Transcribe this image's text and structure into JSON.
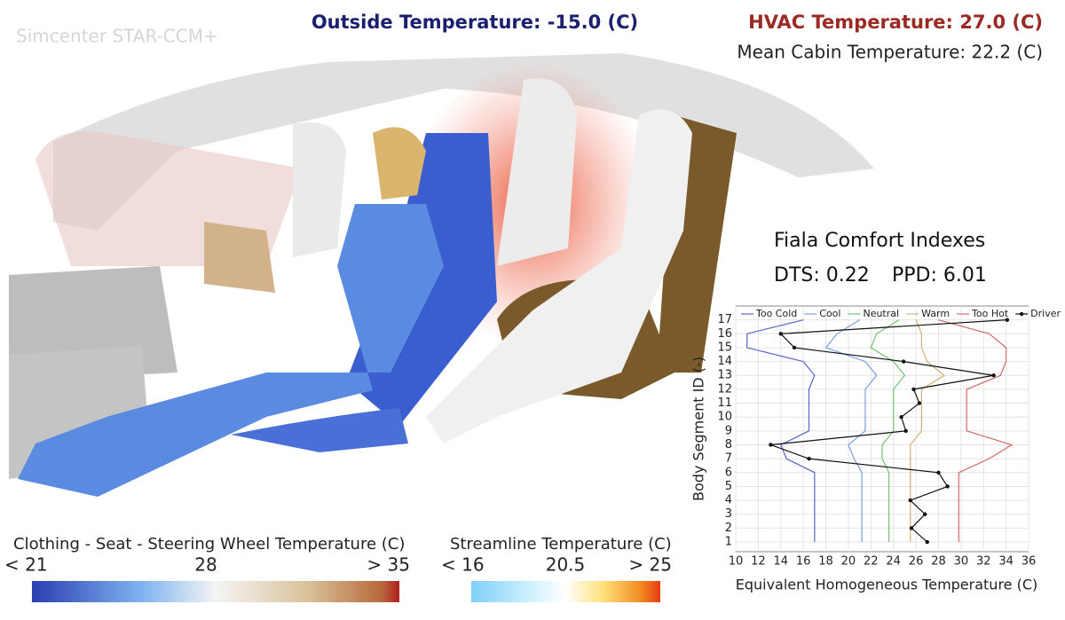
{
  "brand": "Simcenter STAR-CCM+",
  "outside_temperature": "Outside Temperature: -15.0 (C)",
  "hvac_temperature": "HVAC Temperature: 27.0 (C)",
  "mean_cabin_temperature": "Mean Cabin Temperature: 22.2 (C)",
  "comfort": {
    "title": "Fiala Comfort Indexes",
    "dts": "DTS: 0.22",
    "ppd": "PPD: 6.01"
  },
  "colorbar_surface": {
    "title": "Clothing - Seat - Steering Wheel Temperature (C)",
    "labels": [
      "< 21",
      "28",
      "> 35"
    ]
  },
  "colorbar_streamline": {
    "title": "Streamline Temperature (C)",
    "labels": [
      "< 16",
      "20.5",
      "> 25"
    ]
  },
  "chart_data": {
    "type": "line",
    "orientation": "horizontal",
    "xlabel": "Equivalent Homogeneous Temperature (C)",
    "ylabel": "Body Segment ID (-)",
    "y": [
      1,
      2,
      3,
      4,
      5,
      6,
      7,
      8,
      9,
      10,
      11,
      12,
      13,
      14,
      15,
      16,
      17
    ],
    "xlim": [
      10,
      36
    ],
    "xticks": [
      10,
      12,
      14,
      16,
      18,
      20,
      22,
      24,
      26,
      28,
      30,
      32,
      34,
      36
    ],
    "ylim": [
      0.3,
      18
    ],
    "yticks": [
      1,
      2,
      3,
      4,
      5,
      6,
      7,
      8,
      9,
      10,
      11,
      12,
      13,
      14,
      15,
      16,
      17
    ],
    "grid": true,
    "legend": "top",
    "series": [
      {
        "name": "Too Cold",
        "color": "#5a64c8",
        "values": [
          17,
          17,
          17,
          17,
          17,
          17,
          14.5,
          14,
          16.5,
          16.5,
          16.5,
          16.5,
          17,
          16,
          11,
          11,
          16
        ]
      },
      {
        "name": "Cool",
        "color": "#7c9ee0",
        "values": [
          21.2,
          21.2,
          21.2,
          21.2,
          21.2,
          21.2,
          20.5,
          20,
          21.5,
          21.5,
          21.5,
          21.5,
          22.5,
          21.5,
          18,
          19,
          21
        ]
      },
      {
        "name": "Neutral",
        "color": "#74c074",
        "values": [
          23.6,
          23.6,
          23.6,
          23.6,
          23.6,
          23.6,
          23,
          23,
          24,
          24,
          24,
          24,
          25,
          24,
          22,
          22.5,
          24.5
        ]
      },
      {
        "name": "Warm",
        "color": "#d2b071",
        "values": [
          25.5,
          25.5,
          25.5,
          25.5,
          25.5,
          25.5,
          25.5,
          25.5,
          26.5,
          26.5,
          26.5,
          26.5,
          28.5,
          27,
          26.5,
          26.5,
          26
        ]
      },
      {
        "name": "Too Hot",
        "color": "#d46868",
        "values": [
          29.8,
          29.8,
          29.8,
          29.8,
          29.8,
          29.8,
          32.5,
          34.5,
          30.5,
          30.5,
          30.5,
          30.5,
          33.5,
          34,
          34,
          32.5,
          28
        ]
      },
      {
        "name": "Driver",
        "color": "#111111",
        "marker": true,
        "values": [
          27,
          25.6,
          26.8,
          25.5,
          28.8,
          28,
          16.5,
          13.1,
          25.1,
          24.7,
          26.3,
          25.8,
          32.9,
          24.9,
          15.2,
          14,
          34.1
        ]
      }
    ]
  }
}
